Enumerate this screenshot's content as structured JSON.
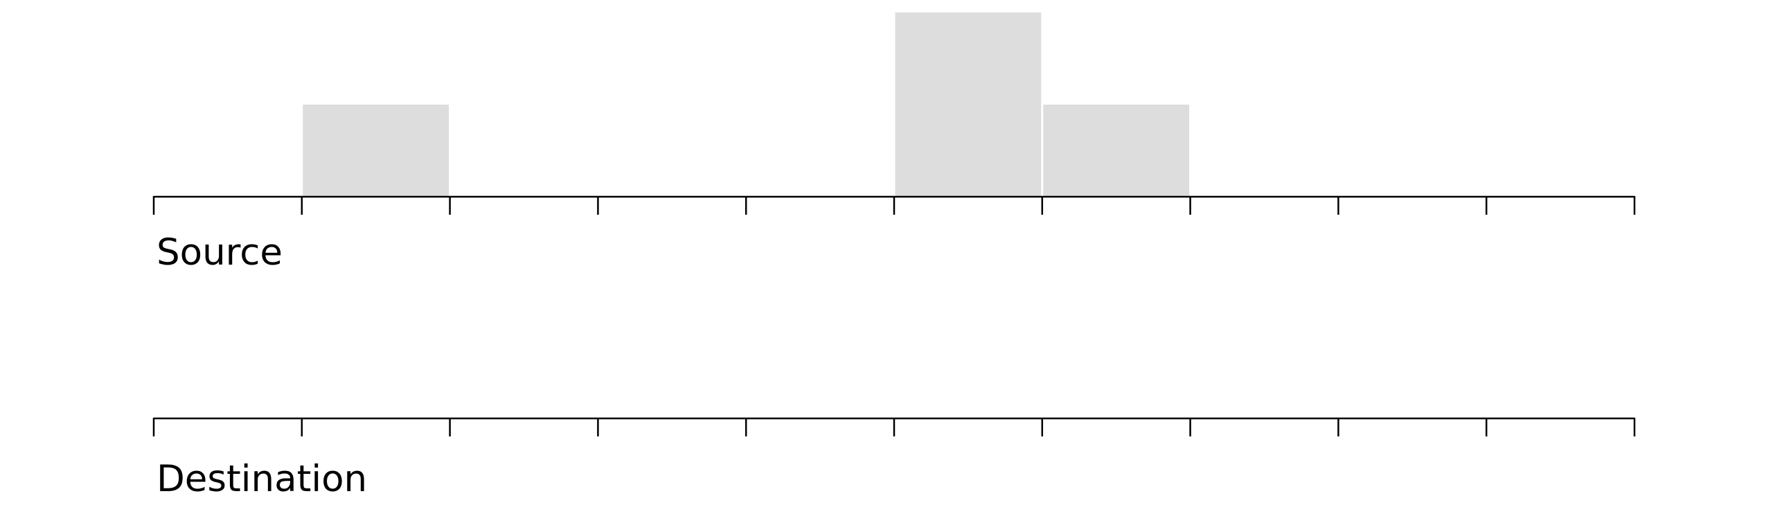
{
  "colors": {
    "bar_fill": "#dddddd",
    "axis_stroke": "#000000",
    "background": "#ffffff"
  },
  "diagram": {
    "source": {
      "label": "Source",
      "bins": 10,
      "values": [
        0,
        1,
        0,
        0,
        0,
        2,
        1,
        0,
        0,
        0
      ],
      "max_value": 2
    },
    "destination": {
      "label": "Destination",
      "bins": 10,
      "values": [
        0,
        0,
        0,
        0,
        0,
        0,
        0,
        0,
        0,
        0
      ],
      "max_value": 2
    }
  }
}
